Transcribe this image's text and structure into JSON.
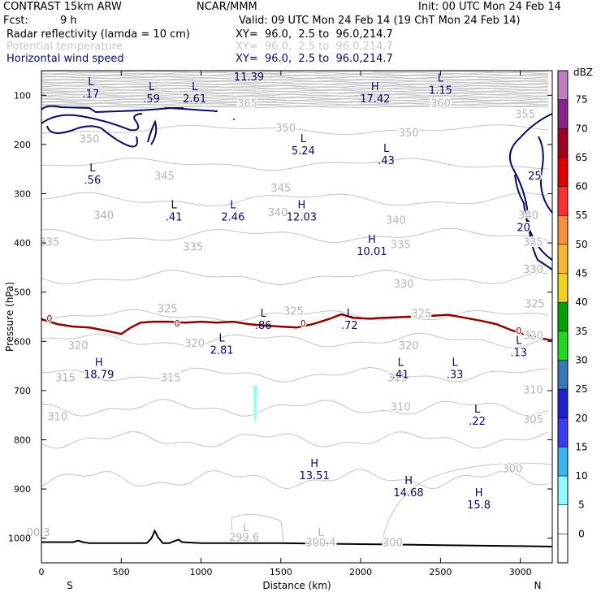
{
  "header": {
    "model": "CONTRAST 15km ARW",
    "org": "NCAR/MMM",
    "init": "Init: 00 UTC Mon 24 Feb 14",
    "fcst_label": "Fcst:",
    "fcst_value": "9 h",
    "valid": "Valid: 09 UTC Mon 24 Feb 14 (19 ChT Mon 24 Feb 14)",
    "fields": [
      {
        "name": "Radar reflectivity (lamda = 10 cm)",
        "xy": "XY=  96.0,  2.5 to  96.0,214.7",
        "color": "#000000"
      },
      {
        "name": "Potential temperature",
        "xy": "XY=  96.0,  2.5 to  96.0,214.7",
        "color": "#c8c8c8"
      },
      {
        "name": "Horizontal wind speed",
        "xy": "XY=  96.0,  2.5 to  96.0,214.7",
        "color": "#0a0a66"
      }
    ]
  },
  "chart_data": {
    "type": "contour",
    "xlabel": "Distance (km)",
    "ylabel": "Pressure (hPa)",
    "xlim": [
      0,
      3200
    ],
    "ylim": [
      1050,
      50
    ],
    "x_ticks": [
      0,
      500,
      1000,
      1500,
      2000,
      2500,
      3000
    ],
    "y_ticks": [
      100,
      200,
      300,
      400,
      500,
      600,
      700,
      800,
      900,
      1000
    ],
    "x_end_labels": {
      "left": "S",
      "right": "N"
    },
    "colorbar": {
      "unit": "dBZ",
      "levels": [
        0,
        5,
        10,
        15,
        20,
        25,
        30,
        35,
        40,
        45,
        50,
        55,
        60,
        65,
        70,
        75
      ],
      "colors": [
        "#ffffff",
        "#8ffdfd",
        "#38b4ef",
        "#3c3cf0",
        "#2020c8",
        "#3878b4",
        "#20d820",
        "#00a000",
        "#f0d020",
        "#f8b830",
        "#f89040",
        "#f83030",
        "#e00000",
        "#a00020",
        "#882488",
        "#c080c0"
      ],
      "lower_fill": "#ffffff"
    },
    "theta_contour_labels": [
      {
        "x": 1290,
        "p": 118,
        "text": "365"
      },
      {
        "x": 2500,
        "p": 118,
        "text": "360"
      },
      {
        "x": 1530,
        "p": 168,
        "text": "350"
      },
      {
        "x": 2300,
        "p": 178,
        "text": "350"
      },
      {
        "x": 300,
        "p": 190,
        "text": "350"
      },
      {
        "x": 3030,
        "p": 140,
        "text": "355"
      },
      {
        "x": 770,
        "p": 265,
        "text": "345"
      },
      {
        "x": 1500,
        "p": 290,
        "text": "345"
      },
      {
        "x": 390,
        "p": 345,
        "text": "340"
      },
      {
        "x": 1480,
        "p": 340,
        "text": "340"
      },
      {
        "x": 2220,
        "p": 355,
        "text": "340"
      },
      {
        "x": 3050,
        "p": 345,
        "text": "340"
      },
      {
        "x": 50,
        "p": 400,
        "text": "335"
      },
      {
        "x": 950,
        "p": 410,
        "text": "335"
      },
      {
        "x": 2250,
        "p": 405,
        "text": "335"
      },
      {
        "x": 3080,
        "p": 400,
        "text": "335"
      },
      {
        "x": 3080,
        "p": 455,
        "text": "330"
      },
      {
        "x": 2270,
        "p": 485,
        "text": "330"
      },
      {
        "x": 790,
        "p": 535,
        "text": "325"
      },
      {
        "x": 1580,
        "p": 540,
        "text": "325"
      },
      {
        "x": 2380,
        "p": 545,
        "text": "325"
      },
      {
        "x": 3090,
        "p": 525,
        "text": "325"
      },
      {
        "x": 3080,
        "p": 590,
        "text": "320"
      },
      {
        "x": 230,
        "p": 610,
        "text": "320"
      },
      {
        "x": 960,
        "p": 605,
        "text": "320"
      },
      {
        "x": 2300,
        "p": 610,
        "text": "320"
      },
      {
        "x": 150,
        "p": 675,
        "text": "315"
      },
      {
        "x": 810,
        "p": 675,
        "text": "315"
      },
      {
        "x": 2230,
        "p": 675,
        "text": "315"
      },
      {
        "x": 3080,
        "p": 700,
        "text": "310"
      },
      {
        "x": 2250,
        "p": 735,
        "text": "310"
      },
      {
        "x": 100,
        "p": 755,
        "text": "310"
      },
      {
        "x": 3080,
        "p": 760,
        "text": "305"
      },
      {
        "x": 2950,
        "p": 860,
        "text": "300"
      },
      {
        "x": 2200,
        "p": 1010,
        "text": "300"
      },
      {
        "x": -20,
        "p": 990,
        "text": "00.3"
      },
      {
        "x": 1270,
        "p": 1000,
        "text": "299.6"
      },
      {
        "x": 1750,
        "p": 1010,
        "text": "300.4"
      },
      {
        "x": 1280,
        "p": 980,
        "text": "L"
      },
      {
        "x": 1750,
        "p": 990,
        "text": "L"
      }
    ],
    "wind_contour_labels": [
      {
        "x": 3090,
        "p": 265,
        "text": "25"
      },
      {
        "x": 3020,
        "p": 370,
        "text": "20"
      }
    ],
    "zero_isotherm_labels": [
      {
        "x": 50,
        "p": 555,
        "text": "0"
      },
      {
        "x": 850,
        "p": 565,
        "text": "0"
      },
      {
        "x": 1640,
        "p": 565,
        "text": "0"
      },
      {
        "x": 2990,
        "p": 580,
        "text": "0"
      }
    ],
    "extrema": [
      {
        "x": 310,
        "p": 80,
        "type": "L",
        "value": ".17"
      },
      {
        "x": 690,
        "p": 90,
        "type": "L",
        "value": ".59"
      },
      {
        "x": 960,
        "p": 90,
        "type": "L",
        "value": "2.61"
      },
      {
        "x": 1300,
        "p": 45,
        "type": "",
        "value": "11.39"
      },
      {
        "x": 2090,
        "p": 90,
        "type": "H",
        "value": "17.42"
      },
      {
        "x": 2500,
        "p": 72,
        "type": "L",
        "value": "1.15"
      },
      {
        "x": 1640,
        "p": 195,
        "type": "L",
        "value": "5.24"
      },
      {
        "x": 2160,
        "p": 215,
        "type": "L",
        "value": ".43"
      },
      {
        "x": 320,
        "p": 255,
        "type": "L",
        "value": ".56"
      },
      {
        "x": 830,
        "p": 330,
        "type": "L",
        "value": ".41"
      },
      {
        "x": 1200,
        "p": 330,
        "type": "L",
        "value": "2.46"
      },
      {
        "x": 1630,
        "p": 330,
        "type": "H",
        "value": "12.03"
      },
      {
        "x": 2070,
        "p": 400,
        "type": "H",
        "value": "10.01"
      },
      {
        "x": 1390,
        "p": 550,
        "type": "L",
        "value": ".86"
      },
      {
        "x": 1930,
        "p": 550,
        "type": "L",
        "value": ".72"
      },
      {
        "x": 1130,
        "p": 600,
        "type": "L",
        "value": "2.81"
      },
      {
        "x": 2990,
        "p": 605,
        "type": "L",
        "value": ".13"
      },
      {
        "x": 360,
        "p": 650,
        "type": "H",
        "value": "18.79"
      },
      {
        "x": 2250,
        "p": 650,
        "type": "L",
        "value": ".41"
      },
      {
        "x": 2590,
        "p": 650,
        "type": "L",
        "value": ".33"
      },
      {
        "x": 2730,
        "p": 745,
        "type": "L",
        "value": ".22"
      },
      {
        "x": 1710,
        "p": 855,
        "type": "H",
        "value": "13.51"
      },
      {
        "x": 2300,
        "p": 890,
        "type": "H",
        "value": "14.68"
      },
      {
        "x": 2740,
        "p": 915,
        "type": "H",
        "value": "15.8"
      }
    ],
    "zero_isotherm": {
      "x": [
        0,
        100,
        200,
        300,
        400,
        500,
        560,
        620,
        700,
        800,
        900,
        1000,
        1100,
        1200,
        1300,
        1400,
        1500,
        1600,
        1700,
        1800,
        1880,
        1950,
        2050,
        2150,
        2300,
        2450,
        2550,
        2650,
        2750,
        2850,
        2950,
        3050,
        3150,
        3200
      ],
      "p": [
        555,
        565,
        570,
        572,
        578,
        585,
        572,
        562,
        560,
        560,
        562,
        560,
        562,
        560,
        565,
        568,
        570,
        572,
        565,
        555,
        545,
        552,
        554,
        552,
        550,
        548,
        546,
        552,
        558,
        565,
        578,
        588,
        595,
        598
      ]
    },
    "terrain": {
      "x": [
        0,
        200,
        230,
        260,
        300,
        500,
        660,
        690,
        710,
        730,
        760,
        800,
        840,
        860,
        880,
        1000,
        1500,
        2000,
        2500,
        3000,
        3200
      ],
      "p": [
        1008,
        1008,
        1005,
        1008,
        1010,
        1010,
        1010,
        1000,
        985,
        998,
        1010,
        1010,
        1005,
        1003,
        1008,
        1010,
        1010,
        1012,
        1014,
        1016,
        1017
      ]
    },
    "reflectivity_cells": [
      {
        "x": 1340,
        "p_top": 690,
        "p_bottom": 770,
        "dbz": 5
      }
    ]
  }
}
